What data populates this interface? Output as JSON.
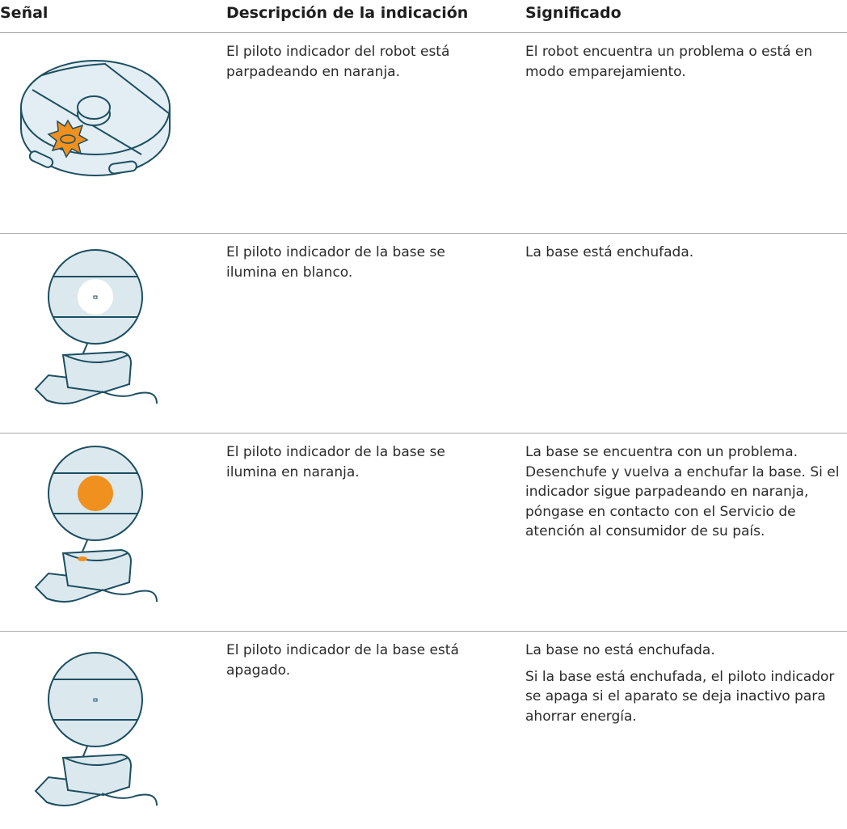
{
  "table": {
    "headers": [
      "Señal",
      "Descripción de la indicación",
      "Significado"
    ],
    "rows": [
      {
        "description": "El piloto indicador del robot está parpadeando en naranja.",
        "meaning": [
          "El robot encuentra un problema o está en modo emparejamiento."
        ]
      },
      {
        "description": "El piloto indicador de la base se ilumina en blanco.",
        "meaning": [
          "La base está enchufada."
        ]
      },
      {
        "description": "El piloto indicador de la base se ilumina en naranja.",
        "meaning": [
          "La base se encuentra con un problema. Desenchufe y vuelva a enchufar la base. Si el indicador sigue parpadeando en naranja, póngase en contacto con el Servicio de atención al consumidor de su país."
        ]
      },
      {
        "description": "El piloto indicador de la base está apagado.",
        "meaning": [
          "La base no está enchufada.",
          "Si la base está enchufada, el piloto indicador se apaga si el aparato se deja inactivo para ahorrar energía."
        ]
      }
    ]
  }
}
